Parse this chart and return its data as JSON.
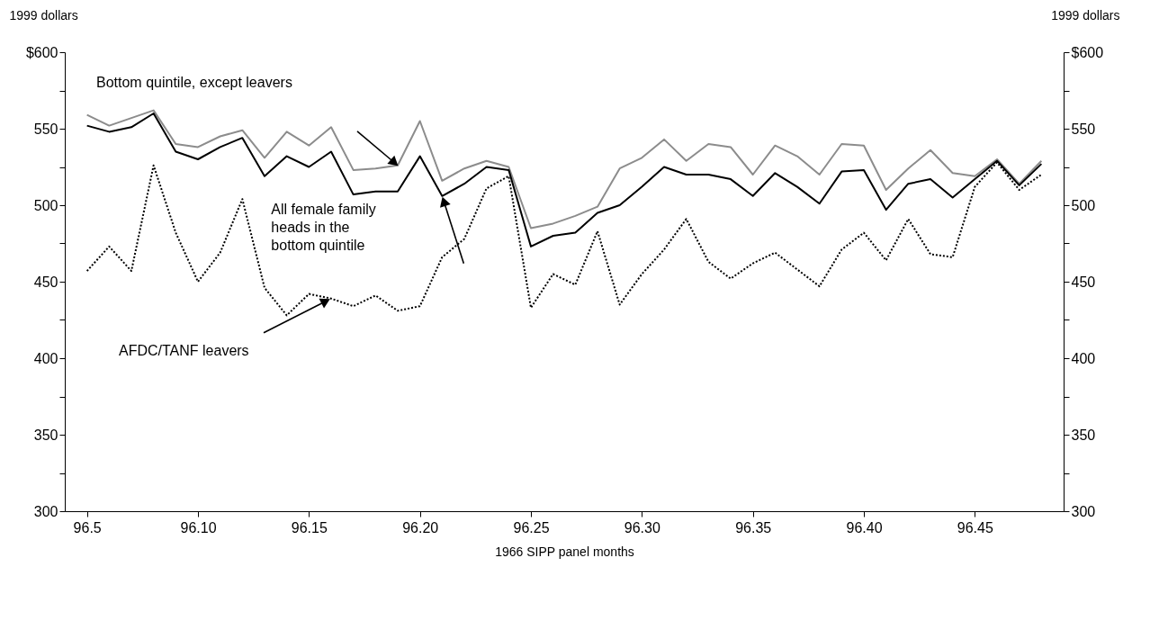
{
  "chart_data": {
    "type": "line",
    "xlabel": "1966 SIPP panel months",
    "ylabel": "1999 dollars",
    "y2label": "1999 dollars",
    "categories": [
      "96.5",
      null,
      null,
      null,
      null,
      "96.10",
      null,
      null,
      null,
      null,
      "96.15",
      null,
      null,
      null,
      null,
      "96.20",
      null,
      null,
      null,
      null,
      "96.25",
      null,
      null,
      null,
      null,
      "96.30",
      null,
      null,
      null,
      null,
      "96.35",
      null,
      null,
      null,
      null,
      "96.40",
      null,
      null,
      null,
      null,
      "96.45",
      null,
      null,
      null
    ],
    "series": [
      {
        "name": "Bottom quintile, except leavers",
        "color": "#8c8c8c",
        "line_style": "solid",
        "values": [
          559,
          552,
          557,
          562,
          540,
          538,
          545,
          549,
          531,
          548,
          539,
          551,
          523,
          524,
          526,
          555,
          516,
          524,
          529,
          525,
          485,
          488,
          493,
          499,
          524,
          531,
          543,
          529,
          540,
          538,
          520,
          539,
          532,
          520,
          540,
          539,
          510,
          524,
          536,
          521,
          519,
          530,
          514,
          529
        ]
      },
      {
        "name": "All female family heads in the bottom quintile",
        "color": "#000000",
        "line_style": "solid",
        "values": [
          552,
          548,
          551,
          560,
          535,
          530,
          538,
          544,
          519,
          532,
          525,
          535,
          507,
          509,
          509,
          532,
          506,
          514,
          525,
          523,
          473,
          480,
          482,
          495,
          500,
          512,
          525,
          520,
          520,
          517,
          506,
          521,
          512,
          501,
          522,
          523,
          497,
          514,
          517,
          505,
          517,
          529,
          513,
          527
        ]
      },
      {
        "name": "AFDC/TANF leavers",
        "color": "#000000",
        "line_style": "dotted",
        "values": [
          457,
          473,
          457,
          526,
          482,
          450,
          469,
          504,
          446,
          428,
          442,
          439,
          434,
          441,
          431,
          434,
          466,
          478,
          511,
          519,
          433,
          455,
          448,
          483,
          435,
          455,
          471,
          491,
          463,
          452,
          462,
          469,
          458,
          447,
          471,
          482,
          464,
          491,
          468,
          466,
          512,
          528,
          510,
          520
        ]
      }
    ],
    "ylim": [
      300,
      600
    ],
    "yticks": [
      300,
      {
        "value": 325,
        "label": null
      },
      350,
      {
        "value": 375,
        "label": null
      },
      400,
      {
        "value": 425,
        "label": null
      },
      450,
      {
        "value": 475,
        "label": null
      },
      500,
      {
        "value": 525,
        "label": null
      },
      550,
      {
        "value": 575,
        "label": null
      },
      {
        "value": 600,
        "label": "$600"
      }
    ],
    "y2lim": [
      300,
      600
    ],
    "y2ticks": [
      300,
      {
        "value": 325,
        "label": null
      },
      350,
      {
        "value": 375,
        "label": null
      },
      400,
      {
        "value": 425,
        "label": null
      },
      450,
      {
        "value": 475,
        "label": null
      },
      500,
      {
        "value": 525,
        "label": null
      },
      550,
      {
        "value": 575,
        "label": null
      },
      {
        "value": 600,
        "label": "$600"
      }
    ],
    "marker": "none"
  }
}
